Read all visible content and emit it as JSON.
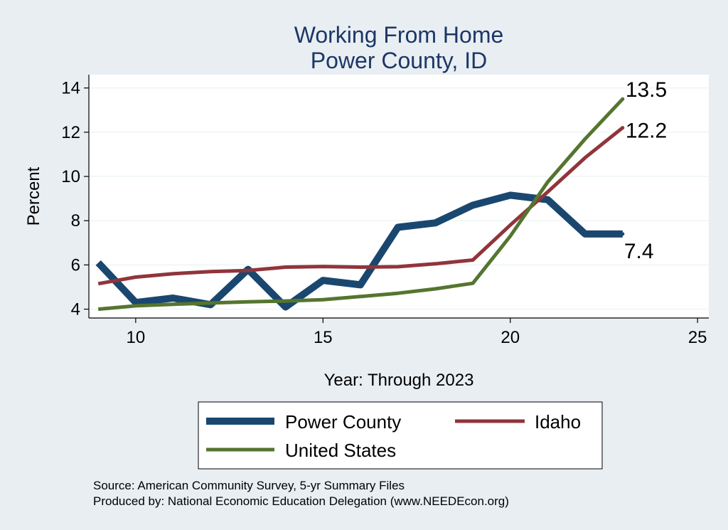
{
  "chart_data": {
    "type": "line",
    "title": [
      "Working From Home",
      "Power County, ID"
    ],
    "xlabel": "Year: Through 2023",
    "ylabel": "Percent",
    "xlim": [
      8.75,
      25.3
    ],
    "ylim": [
      3.6,
      14.6
    ],
    "xticks": [
      10,
      15,
      20,
      25
    ],
    "yticks": [
      4,
      6,
      8,
      10,
      12,
      14
    ],
    "grid": true,
    "legend": "bottom",
    "series": [
      {
        "name": "Power County",
        "color": "#1a476f",
        "x": [
          9,
          10,
          11,
          12,
          13,
          14,
          15,
          16,
          17,
          18,
          19,
          20,
          21,
          22,
          23
        ],
        "values": [
          6.1,
          4.3,
          4.5,
          4.2,
          5.8,
          4.1,
          5.3,
          5.1,
          7.7,
          7.9,
          8.7,
          9.15,
          8.95,
          7.4,
          7.4
        ],
        "end_label": "7.4"
      },
      {
        "name": "Idaho",
        "color": "#90353b",
        "x": [
          9,
          10,
          11,
          12,
          13,
          14,
          15,
          16,
          17,
          18,
          19,
          20,
          21,
          22,
          23
        ],
        "values": [
          5.15,
          5.45,
          5.6,
          5.7,
          5.75,
          5.9,
          5.93,
          5.9,
          5.92,
          6.05,
          6.22,
          7.8,
          9.3,
          10.85,
          12.2
        ],
        "end_label": "12.2"
      },
      {
        "name": "United States",
        "color": "#55752f",
        "x": [
          9,
          10,
          11,
          12,
          13,
          14,
          15,
          16,
          17,
          18,
          19,
          20,
          21,
          22,
          23
        ],
        "values": [
          4.0,
          4.15,
          4.22,
          4.28,
          4.33,
          4.37,
          4.43,
          4.57,
          4.72,
          4.92,
          5.17,
          7.3,
          9.75,
          11.7,
          13.5
        ],
        "end_label": "13.5"
      }
    ]
  },
  "source_lines": [
    "Source: American Community Survey, 5-yr Summary Files",
    "Produced by: National Economic Education Delegation (www.NEEDEcon.org)"
  ]
}
